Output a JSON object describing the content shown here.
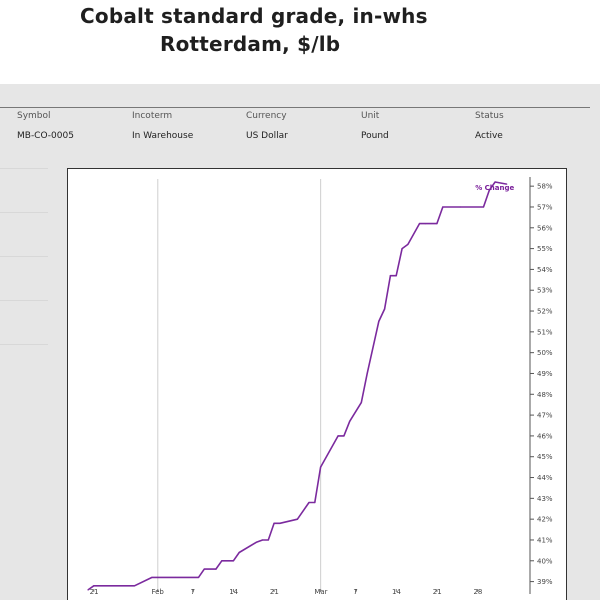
{
  "page": {
    "title_line1": "Cobalt standard grade, in-whs",
    "title_line2": "Rotterdam, $/lb"
  },
  "info": {
    "headers": [
      "Symbol",
      "Incoterm",
      "Currency",
      "Unit",
      "Status"
    ],
    "values": [
      "MB-CO-0005",
      "In Warehouse",
      "US Dollar",
      "Pound",
      "Active"
    ]
  },
  "colors": {
    "series": "#7b2a9e",
    "panel_bg": "#e6e6e6"
  },
  "chart_data": {
    "type": "line",
    "x_tick_labels": [
      "21",
      "Feb",
      "7",
      "14",
      "21",
      "Mar",
      "7",
      "14",
      "21",
      "28"
    ],
    "y_tick_labels": [
      "39%",
      "40%",
      "41%",
      "42%",
      "43%",
      "44%",
      "45%",
      "46%",
      "47%",
      "48%",
      "49%",
      "50%",
      "51%",
      "52%",
      "53%",
      "54%",
      "55%",
      "56%",
      "57%",
      "58%"
    ],
    "ylim": [
      38.5,
      58.2
    ],
    "grid_vertical_at": [
      "Feb",
      "Mar"
    ],
    "series": [
      {
        "name": "% Change",
        "x": [
          "2019-01-20",
          "2019-01-21",
          "2019-01-24",
          "2019-01-28",
          "2019-01-31",
          "2019-02-01",
          "2019-02-04",
          "2019-02-08",
          "2019-02-09",
          "2019-02-11",
          "2019-02-12",
          "2019-02-14",
          "2019-02-15",
          "2019-02-18",
          "2019-02-19",
          "2019-02-20",
          "2019-02-21",
          "2019-02-22",
          "2019-02-25",
          "2019-02-27",
          "2019-02-28",
          "2019-03-01",
          "2019-03-04",
          "2019-03-05",
          "2019-03-06",
          "2019-03-08",
          "2019-03-09",
          "2019-03-11",
          "2019-03-12",
          "2019-03-13",
          "2019-03-14",
          "2019-03-15",
          "2019-03-16",
          "2019-03-18",
          "2019-03-19",
          "2019-03-21",
          "2019-03-22",
          "2019-03-25",
          "2019-03-29",
          "2019-03-30",
          "2019-03-31",
          "2019-04-02"
        ],
        "values": [
          38.6,
          38.8,
          38.8,
          38.8,
          39.2,
          39.2,
          39.2,
          39.2,
          39.6,
          39.6,
          40.0,
          40.0,
          40.4,
          40.9,
          41.0,
          41.0,
          41.8,
          41.8,
          42.0,
          42.8,
          42.8,
          44.5,
          46.0,
          46.0,
          46.7,
          47.6,
          49.0,
          51.5,
          52.1,
          53.7,
          53.7,
          55.0,
          55.2,
          56.2,
          56.2,
          56.2,
          57.0,
          57.0,
          57.0,
          57.8,
          58.2,
          58.1
        ]
      }
    ]
  }
}
